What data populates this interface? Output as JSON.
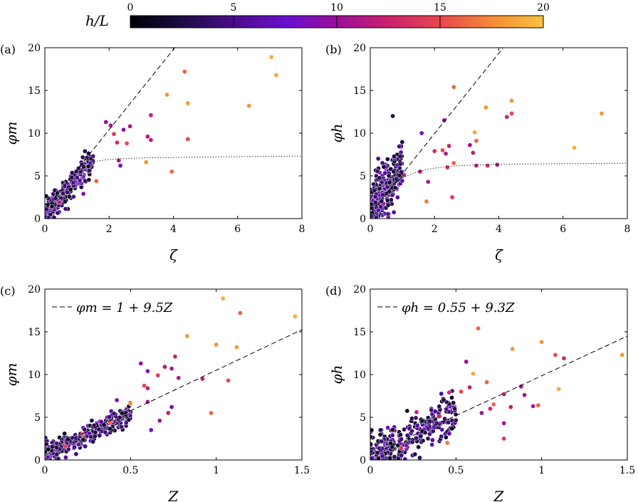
{
  "colorbar": {
    "label": "h/L",
    "ticks": [
      "0",
      "5",
      "10",
      "15",
      "20"
    ],
    "tick_values": [
      0,
      5,
      10,
      15,
      20
    ],
    "range": [
      0,
      20
    ],
    "colormap_stops": [
      "#0d0887",
      "#000004",
      "#420a68",
      "#6a0dad",
      "#8b0aa5",
      "#b4287a",
      "#e0405a",
      "#f07a30",
      "#f6b93b",
      "#fcdc50"
    ]
  },
  "chart_data": [
    {
      "panel_label": "(a)",
      "type": "scatter",
      "xlabel": "ζ",
      "ylabel": "φm",
      "xlim": [
        0,
        8
      ],
      "ylim": [
        0,
        20
      ],
      "xticks": [
        "0",
        "2",
        "4",
        "6",
        "8"
      ],
      "yticks": [
        "0",
        "5",
        "10",
        "15",
        "20"
      ],
      "lines": [
        {
          "style": "dashed",
          "equation": "1+4.7ζ"
        },
        {
          "style": "dotted",
          "equation": "saturating curve"
        }
      ],
      "highlight_points": [
        {
          "x": 7.05,
          "y": 18.9,
          "c": 19
        },
        {
          "x": 7.2,
          "y": 16.8,
          "c": 19
        },
        {
          "x": 4.35,
          "y": 17.2,
          "c": 16
        },
        {
          "x": 3.8,
          "y": 14.5,
          "c": 18
        },
        {
          "x": 4.45,
          "y": 13.5,
          "c": 18
        },
        {
          "x": 6.35,
          "y": 13.2,
          "c": 18
        },
        {
          "x": 3.3,
          "y": 12.1,
          "c": 12
        },
        {
          "x": 1.9,
          "y": 11.3,
          "c": 10
        },
        {
          "x": 2.05,
          "y": 10.9,
          "c": 11
        },
        {
          "x": 2.65,
          "y": 10.8,
          "c": 11
        },
        {
          "x": 2.45,
          "y": 10.4,
          "c": 9
        },
        {
          "x": 2.55,
          "y": 8.8,
          "c": 15
        },
        {
          "x": 2.25,
          "y": 8.9,
          "c": 13
        },
        {
          "x": 2.15,
          "y": 9.9,
          "c": 14
        },
        {
          "x": 3.2,
          "y": 9.6,
          "c": 11
        },
        {
          "x": 3.3,
          "y": 9.2,
          "c": 12
        },
        {
          "x": 4.45,
          "y": 9.3,
          "c": 15
        },
        {
          "x": 3.15,
          "y": 6.6,
          "c": 18
        },
        {
          "x": 2.3,
          "y": 6.8,
          "c": 11
        },
        {
          "x": 2.35,
          "y": 6.2,
          "c": 8
        },
        {
          "x": 3.95,
          "y": 5.5,
          "c": 16
        },
        {
          "x": 1.6,
          "y": 4.4,
          "c": 16
        },
        {
          "x": 1.2,
          "y": 2.9,
          "c": 9
        },
        {
          "x": 0.45,
          "y": 1.9,
          "c": 12
        }
      ]
    },
    {
      "panel_label": "(b)",
      "type": "scatter",
      "xlabel": "ζ",
      "ylabel": "φh",
      "xlim": [
        0,
        8
      ],
      "ylim": [
        0,
        20
      ],
      "xticks": [
        "0",
        "2",
        "4",
        "6",
        "8"
      ],
      "yticks": [
        "0",
        "5",
        "10",
        "15",
        "20"
      ],
      "lines": [
        {
          "style": "dashed",
          "equation": "0.55+4.7ζ"
        },
        {
          "style": "dotted",
          "equation": "saturating curve"
        }
      ],
      "highlight_points": [
        {
          "x": 2.6,
          "y": 15.4,
          "c": 16
        },
        {
          "x": 4.4,
          "y": 13.8,
          "c": 18
        },
        {
          "x": 3.6,
          "y": 13.0,
          "c": 18
        },
        {
          "x": 7.2,
          "y": 12.3,
          "c": 18
        },
        {
          "x": 4.4,
          "y": 12.3,
          "c": 15
        },
        {
          "x": 4.25,
          "y": 11.9,
          "c": 13
        },
        {
          "x": 2.3,
          "y": 11.5,
          "c": 10
        },
        {
          "x": 3.25,
          "y": 10.1,
          "c": 19
        },
        {
          "x": 3.3,
          "y": 9.1,
          "c": 16
        },
        {
          "x": 2.25,
          "y": 8.0,
          "c": 15
        },
        {
          "x": 2.45,
          "y": 8.5,
          "c": 12
        },
        {
          "x": 3.1,
          "y": 8.6,
          "c": 10
        },
        {
          "x": 2.0,
          "y": 7.9,
          "c": 13
        },
        {
          "x": 6.35,
          "y": 8.3,
          "c": 19
        },
        {
          "x": 2.35,
          "y": 7.6,
          "c": 11
        },
        {
          "x": 3.2,
          "y": 7.7,
          "c": 12
        },
        {
          "x": 2.6,
          "y": 6.5,
          "c": 16
        },
        {
          "x": 3.3,
          "y": 6.2,
          "c": 12
        },
        {
          "x": 3.95,
          "y": 6.3,
          "c": 11
        },
        {
          "x": 3.65,
          "y": 6.2,
          "c": 13
        },
        {
          "x": 2.4,
          "y": 6.0,
          "c": 13
        },
        {
          "x": 1.55,
          "y": 5.5,
          "c": 11
        },
        {
          "x": 1.8,
          "y": 4.3,
          "c": 11
        },
        {
          "x": 1.05,
          "y": 5.1,
          "c": 12
        },
        {
          "x": 2.55,
          "y": 2.5,
          "c": 14
        },
        {
          "x": 1.75,
          "y": 2.0,
          "c": 17
        },
        {
          "x": 0.7,
          "y": 12.0,
          "c": 3
        },
        {
          "x": 1.6,
          "y": 10.0,
          "c": 8
        }
      ]
    },
    {
      "panel_label": "(c)",
      "type": "scatter",
      "xlabel": "Z",
      "ylabel": "φm",
      "xlim": [
        0,
        1.5
      ],
      "ylim": [
        0,
        20
      ],
      "xticks": [
        "0",
        "0.5",
        "1",
        "1.5"
      ],
      "yticks": [
        "0",
        "5",
        "10",
        "15",
        "20"
      ],
      "legend": "φm = 1 + 9.5Z",
      "legend_position": "top-left",
      "lines": [
        {
          "style": "dashed",
          "intercept": 1,
          "slope": 9.5
        }
      ],
      "highlight_points": [
        {
          "x": 1.04,
          "y": 18.9,
          "c": 19
        },
        {
          "x": 1.46,
          "y": 16.8,
          "c": 19
        },
        {
          "x": 1.14,
          "y": 17.2,
          "c": 16
        },
        {
          "x": 0.83,
          "y": 14.5,
          "c": 18
        },
        {
          "x": 1.0,
          "y": 13.5,
          "c": 18
        },
        {
          "x": 1.12,
          "y": 13.2,
          "c": 18
        },
        {
          "x": 0.76,
          "y": 12.1,
          "c": 12
        },
        {
          "x": 0.56,
          "y": 11.3,
          "c": 10
        },
        {
          "x": 0.7,
          "y": 10.9,
          "c": 11
        },
        {
          "x": 0.74,
          "y": 10.7,
          "c": 11
        },
        {
          "x": 0.6,
          "y": 10.4,
          "c": 9
        },
        {
          "x": 0.58,
          "y": 8.7,
          "c": 15
        },
        {
          "x": 0.6,
          "y": 8.4,
          "c": 12
        },
        {
          "x": 0.66,
          "y": 9.9,
          "c": 14
        },
        {
          "x": 0.78,
          "y": 9.6,
          "c": 11
        },
        {
          "x": 0.92,
          "y": 9.5,
          "c": 12
        },
        {
          "x": 1.07,
          "y": 9.3,
          "c": 15
        },
        {
          "x": 0.5,
          "y": 6.6,
          "c": 18
        },
        {
          "x": 0.6,
          "y": 6.8,
          "c": 11
        },
        {
          "x": 0.74,
          "y": 6.2,
          "c": 8
        },
        {
          "x": 0.97,
          "y": 5.5,
          "c": 16
        },
        {
          "x": 0.38,
          "y": 4.4,
          "c": 16
        },
        {
          "x": 0.72,
          "y": 5.5,
          "c": 12
        },
        {
          "x": 0.67,
          "y": 4.6,
          "c": 10
        },
        {
          "x": 0.62,
          "y": 3.5,
          "c": 8
        },
        {
          "x": 0.42,
          "y": 7.0,
          "c": 9
        },
        {
          "x": 0.22,
          "y": 3.0,
          "c": 16
        },
        {
          "x": 0.12,
          "y": 1.6,
          "c": 14
        }
      ]
    },
    {
      "panel_label": "(d)",
      "type": "scatter",
      "xlabel": "Z",
      "ylabel": "φh",
      "xlim": [
        0,
        1.5
      ],
      "ylim": [
        0,
        20
      ],
      "xticks": [
        "0",
        "0.5",
        "1",
        "1.5"
      ],
      "yticks": [
        "0",
        "5",
        "10",
        "15",
        "20"
      ],
      "legend": "φh = 0.55 + 9.3Z",
      "legend_position": "top-left",
      "lines": [
        {
          "style": "dashed",
          "intercept": 0.55,
          "slope": 9.3
        }
      ],
      "highlight_points": [
        {
          "x": 0.63,
          "y": 15.4,
          "c": 16
        },
        {
          "x": 1.0,
          "y": 13.8,
          "c": 18
        },
        {
          "x": 0.83,
          "y": 13.0,
          "c": 18
        },
        {
          "x": 1.47,
          "y": 12.3,
          "c": 18
        },
        {
          "x": 1.08,
          "y": 12.3,
          "c": 15
        },
        {
          "x": 1.13,
          "y": 11.9,
          "c": 13
        },
        {
          "x": 0.56,
          "y": 11.5,
          "c": 10
        },
        {
          "x": 0.6,
          "y": 10.1,
          "c": 19
        },
        {
          "x": 0.68,
          "y": 9.1,
          "c": 16
        },
        {
          "x": 0.53,
          "y": 8.0,
          "c": 15
        },
        {
          "x": 0.58,
          "y": 8.5,
          "c": 12
        },
        {
          "x": 0.88,
          "y": 8.6,
          "c": 10
        },
        {
          "x": 0.46,
          "y": 7.9,
          "c": 13
        },
        {
          "x": 1.1,
          "y": 8.3,
          "c": 19
        },
        {
          "x": 0.9,
          "y": 7.6,
          "c": 11
        },
        {
          "x": 0.78,
          "y": 7.7,
          "c": 12
        },
        {
          "x": 0.72,
          "y": 6.5,
          "c": 16
        },
        {
          "x": 0.82,
          "y": 6.2,
          "c": 12
        },
        {
          "x": 0.95,
          "y": 6.3,
          "c": 11
        },
        {
          "x": 0.98,
          "y": 6.4,
          "c": 16
        },
        {
          "x": 0.7,
          "y": 6.0,
          "c": 13
        },
        {
          "x": 0.65,
          "y": 5.5,
          "c": 11
        },
        {
          "x": 0.78,
          "y": 4.3,
          "c": 11
        },
        {
          "x": 0.4,
          "y": 5.1,
          "c": 12
        },
        {
          "x": 0.78,
          "y": 2.5,
          "c": 14
        },
        {
          "x": 0.45,
          "y": 2.0,
          "c": 17
        },
        {
          "x": 0.27,
          "y": 5.6,
          "c": 12
        },
        {
          "x": 0.18,
          "y": 1.4,
          "c": 14
        }
      ]
    }
  ]
}
